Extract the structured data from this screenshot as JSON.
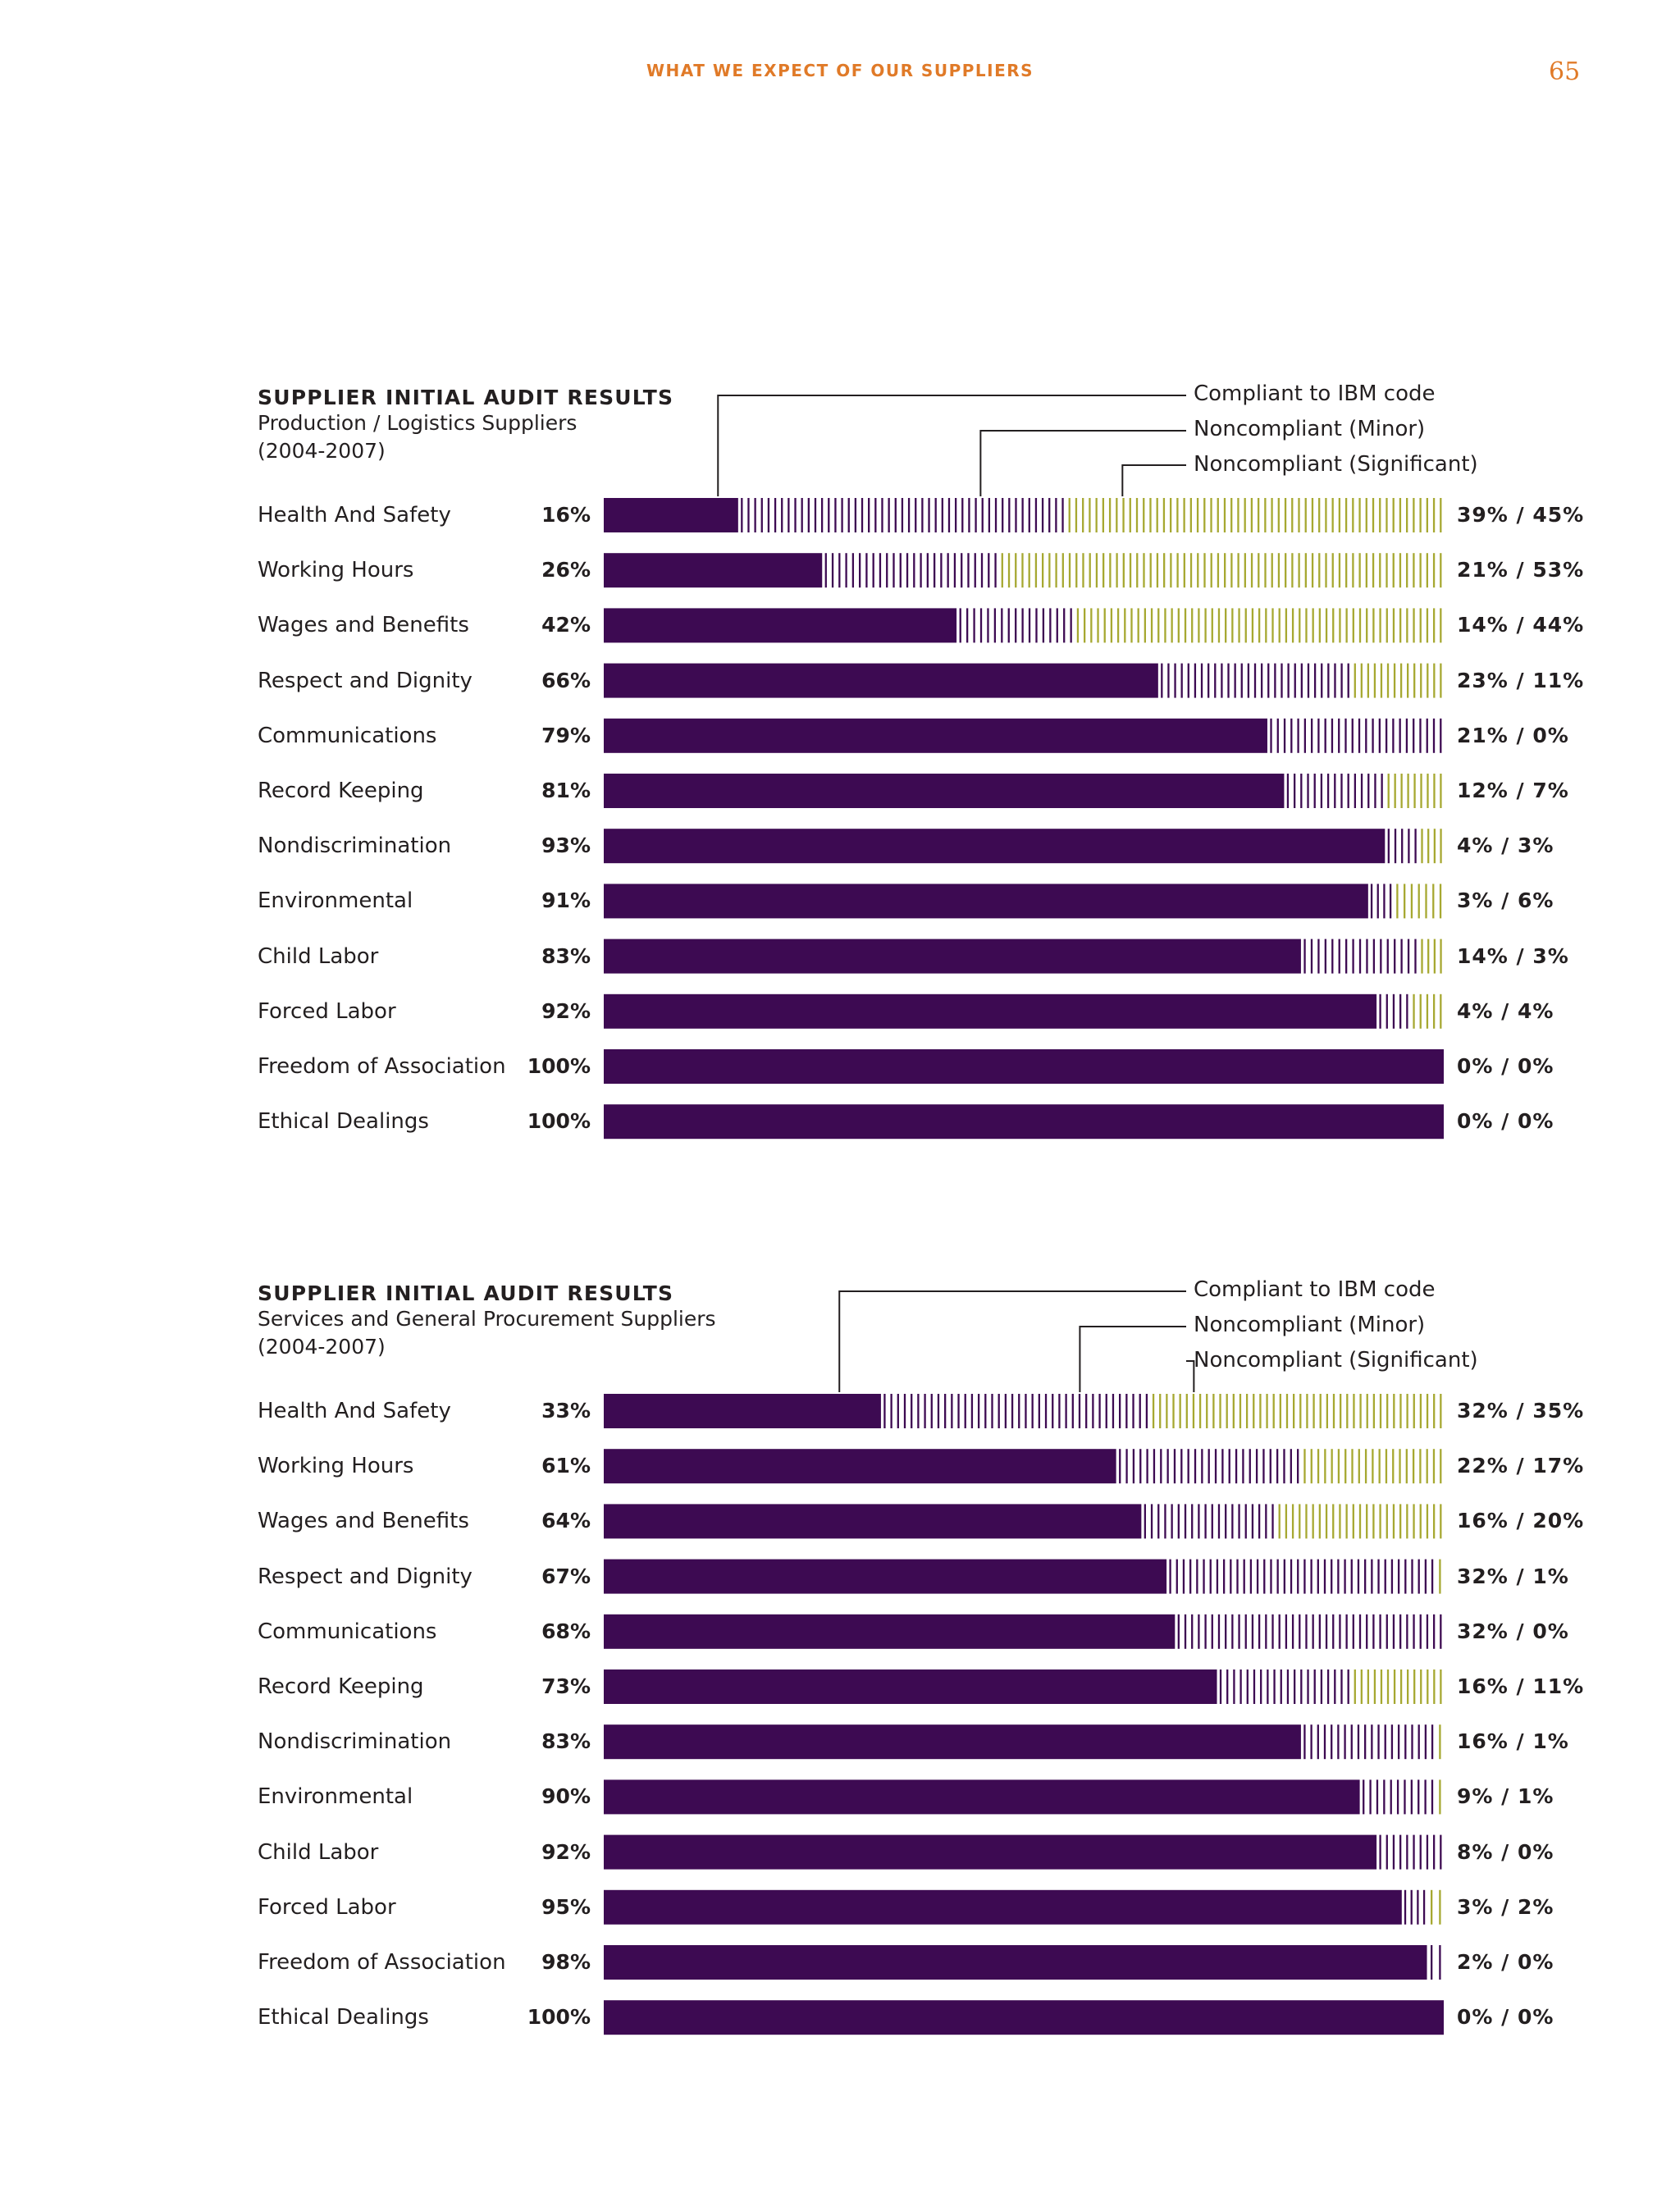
{
  "header": {
    "title": "WHAT WE EXPECT OF OUR SUPPLIERS",
    "page_number": "65"
  },
  "colors": {
    "compliant": "#3d0a52",
    "minor": "#3d0a52",
    "significant": "#a6a831",
    "text": "#231f20",
    "accent": "#e07a28"
  },
  "chart_data": [
    {
      "type": "bar",
      "stacked": true,
      "orientation": "horizontal",
      "title": "SUPPLIER INITIAL AUDIT RESULTS",
      "subtitle": "Production / Logistics Suppliers",
      "years": "(2004-2007)",
      "legend": [
        "Compliant to IBM code",
        "Noncompliant (Minor)",
        "Noncompliant (Significant)"
      ],
      "xlim": [
        0,
        100
      ],
      "categories": [
        "Health And Safety",
        "Working Hours",
        "Wages and Benefits",
        "Respect and Dignity",
        "Communications",
        "Record Keeping",
        "Nondiscrimination",
        "Environmental",
        "Child Labor",
        "Forced Labor",
        "Freedom of Association",
        "Ethical Dealings"
      ],
      "series": [
        {
          "name": "Compliant to IBM code",
          "values": [
            16,
            26,
            42,
            66,
            79,
            81,
            93,
            91,
            83,
            92,
            100,
            100
          ]
        },
        {
          "name": "Noncompliant (Minor)",
          "values": [
            39,
            21,
            14,
            23,
            21,
            12,
            4,
            3,
            14,
            4,
            0,
            0
          ]
        },
        {
          "name": "Noncompliant (Significant)",
          "values": [
            45,
            53,
            44,
            11,
            0,
            7,
            3,
            6,
            3,
            4,
            0,
            0
          ]
        }
      ],
      "compliant_labels": [
        "16%",
        "26%",
        "42%",
        "66%",
        "79%",
        "81%",
        "93%",
        "91%",
        "83%",
        "92%",
        "100%",
        "100%"
      ],
      "noncompliant_labels": [
        "39% / 45%",
        "21% / 53%",
        "14% / 44%",
        "23% / 11%",
        "21% / 0%",
        "12% / 7%",
        "4% / 3%",
        "3% / 6%",
        "14% / 3%",
        "4% / 4%",
        "0% / 0%",
        "0% / 0%"
      ]
    },
    {
      "type": "bar",
      "stacked": true,
      "orientation": "horizontal",
      "title": "SUPPLIER INITIAL AUDIT RESULTS",
      "subtitle": "Services and General Procurement Suppliers",
      "years": "(2004-2007)",
      "legend": [
        "Compliant to IBM code",
        "Noncompliant (Minor)",
        "Noncompliant (Significant)"
      ],
      "xlim": [
        0,
        100
      ],
      "categories": [
        "Health And Safety",
        "Working Hours",
        "Wages and Benefits",
        "Respect and Dignity",
        "Communications",
        "Record Keeping",
        "Nondiscrimination",
        "Environmental",
        "Child Labor",
        "Forced Labor",
        "Freedom of Association",
        "Ethical Dealings"
      ],
      "series": [
        {
          "name": "Compliant to IBM code",
          "values": [
            33,
            61,
            64,
            67,
            68,
            73,
            83,
            90,
            92,
            95,
            98,
            100
          ]
        },
        {
          "name": "Noncompliant (Minor)",
          "values": [
            32,
            22,
            16,
            32,
            32,
            16,
            16,
            9,
            8,
            3,
            2,
            0
          ]
        },
        {
          "name": "Noncompliant (Significant)",
          "values": [
            35,
            17,
            20,
            1,
            0,
            11,
            1,
            1,
            0,
            2,
            0,
            0
          ]
        }
      ],
      "compliant_labels": [
        "33%",
        "61%",
        "64%",
        "67%",
        "68%",
        "73%",
        "83%",
        "90%",
        "92%",
        "95%",
        "98%",
        "100%"
      ],
      "noncompliant_labels": [
        "32% / 35%",
        "22% / 17%",
        "16% / 20%",
        "32% / 1%",
        "32% / 0%",
        "16% / 11%",
        "16% / 1%",
        "9% / 1%",
        "8% / 0%",
        "3% / 2%",
        "2% / 0%",
        "0% / 0%"
      ]
    }
  ]
}
